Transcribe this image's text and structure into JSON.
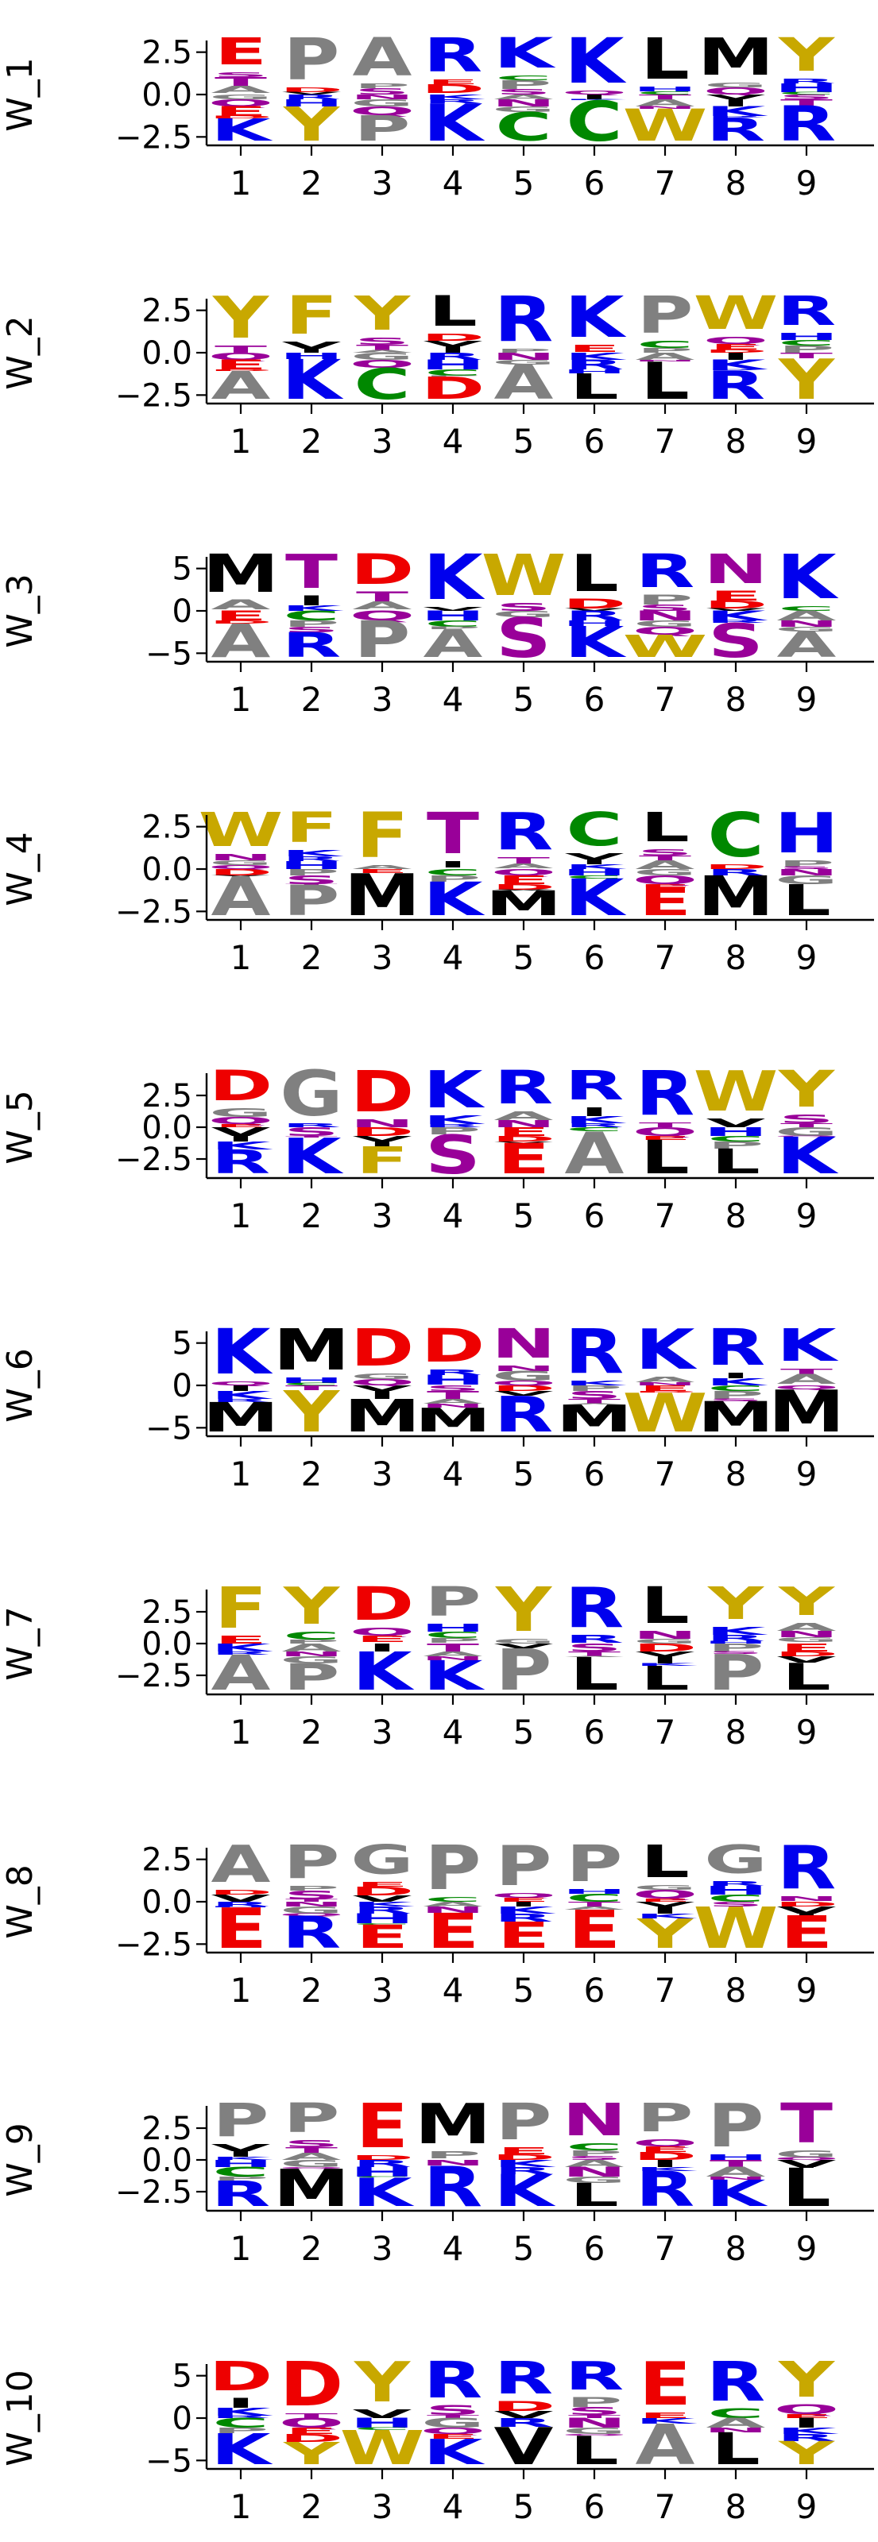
{
  "chart_data": [
    {
      "type": "logo",
      "ylabel": "W_1",
      "yticks": [
        "2.5",
        "0.0",
        "−2.5"
      ],
      "ylim": [
        -3,
        3
      ],
      "x": [
        1,
        2,
        3,
        4,
        5,
        6,
        7,
        8,
        9
      ],
      "top_letters": [
        "E",
        "P",
        "A",
        "R",
        "K",
        "K",
        "L",
        "M",
        "Y"
      ],
      "bottom_letters": [
        "K",
        "Y",
        "P",
        "K",
        "C",
        "C",
        "W",
        "R",
        "R"
      ]
    },
    {
      "type": "logo",
      "ylabel": "W_2",
      "yticks": [
        "2.5",
        "0.0",
        "−2.5"
      ],
      "ylim": [
        -3,
        3
      ],
      "x": [
        1,
        2,
        3,
        4,
        5,
        6,
        7,
        8,
        9
      ],
      "top_letters": [
        "Y",
        "F",
        "Y",
        "L",
        "R",
        "K",
        "P",
        "W",
        "R"
      ],
      "bottom_letters": [
        "A",
        "K",
        "C",
        "D",
        "A",
        "L",
        "L",
        "R",
        "Y"
      ]
    },
    {
      "type": "logo",
      "ylabel": "W_3",
      "yticks": [
        "5",
        "0",
        "−5"
      ],
      "ylim": [
        -6,
        6
      ],
      "x": [
        1,
        2,
        3,
        4,
        5,
        6,
        7,
        8,
        9
      ],
      "top_letters": [
        "M",
        "T",
        "D",
        "K",
        "W",
        "L",
        "R",
        "N",
        "K"
      ],
      "bottom_letters": [
        "A",
        "R",
        "P",
        "A",
        "S",
        "K",
        "W",
        "S",
        "A"
      ]
    },
    {
      "type": "logo",
      "ylabel": "W_4",
      "yticks": [
        "2.5",
        "0.0",
        "−2.5"
      ],
      "ylim": [
        -3,
        3
      ],
      "x": [
        1,
        2,
        3,
        4,
        5,
        6,
        7,
        8,
        9
      ],
      "top_letters": [
        "W",
        "F",
        "F",
        "T",
        "R",
        "C",
        "L",
        "C",
        "H"
      ],
      "bottom_letters": [
        "A",
        "P",
        "M",
        "K",
        "M",
        "K",
        "E",
        "M",
        "L"
      ]
    },
    {
      "type": "logo",
      "ylabel": "W_5",
      "yticks": [
        "2.5",
        "0.0",
        "−2.5"
      ],
      "ylim": [
        -4,
        4
      ],
      "x": [
        1,
        2,
        3,
        4,
        5,
        6,
        7,
        8,
        9
      ],
      "top_letters": [
        "D",
        "G",
        "D",
        "K",
        "R",
        "R",
        "R",
        "W",
        "Y"
      ],
      "bottom_letters": [
        "R",
        "K",
        "F",
        "S",
        "E",
        "A",
        "L",
        "L",
        "K"
      ]
    },
    {
      "type": "logo",
      "ylabel": "W_6",
      "yticks": [
        "5",
        "0",
        "−5"
      ],
      "ylim": [
        -6,
        6
      ],
      "x": [
        1,
        2,
        3,
        4,
        5,
        6,
        7,
        8,
        9
      ],
      "top_letters": [
        "K",
        "M",
        "D",
        "D",
        "N",
        "R",
        "K",
        "R",
        "K"
      ],
      "bottom_letters": [
        "M",
        "Y",
        "M",
        "M",
        "R",
        "M",
        "W",
        "M",
        "M"
      ]
    },
    {
      "type": "logo",
      "ylabel": "W_7",
      "yticks": [
        "2.5",
        "0.0",
        "−2.5"
      ],
      "ylim": [
        -4,
        4
      ],
      "x": [
        1,
        2,
        3,
        4,
        5,
        6,
        7,
        8,
        9
      ],
      "top_letters": [
        "F",
        "Y",
        "D",
        "P",
        "Y",
        "R",
        "L",
        "Y",
        "Y"
      ],
      "bottom_letters": [
        "A",
        "P",
        "K",
        "K",
        "P",
        "L",
        "L",
        "P",
        "L"
      ]
    },
    {
      "type": "logo",
      "ylabel": "W_8",
      "yticks": [
        "2.5",
        "0.0",
        "−2.5"
      ],
      "ylim": [
        -3,
        3
      ],
      "x": [
        1,
        2,
        3,
        4,
        5,
        6,
        7,
        8,
        9
      ],
      "top_letters": [
        "A",
        "P",
        "G",
        "P",
        "P",
        "P",
        "L",
        "G",
        "R"
      ],
      "bottom_letters": [
        "E",
        "R",
        "E",
        "E",
        "E",
        "E",
        "Y",
        "W",
        "E"
      ]
    },
    {
      "type": "logo",
      "ylabel": "W_9",
      "yticks": [
        "2.5",
        "0.0",
        "−2.5"
      ],
      "ylim": [
        -4,
        4
      ],
      "x": [
        1,
        2,
        3,
        4,
        5,
        6,
        7,
        8,
        9
      ],
      "top_letters": [
        "P",
        "P",
        "E",
        "M",
        "P",
        "N",
        "P",
        "P",
        "T"
      ],
      "bottom_letters": [
        "R",
        "M",
        "K",
        "R",
        "K",
        "L",
        "R",
        "K",
        "L"
      ]
    },
    {
      "type": "logo",
      "ylabel": "W_10",
      "yticks": [
        "5",
        "0",
        "−5"
      ],
      "ylim": [
        -6,
        6
      ],
      "x": [
        1,
        2,
        3,
        4,
        5,
        6,
        7,
        8,
        9
      ],
      "top_letters": [
        "D",
        "D",
        "Y",
        "R",
        "R",
        "R",
        "E",
        "R",
        "Y"
      ],
      "bottom_letters": [
        "K",
        "Y",
        "W",
        "K",
        "V",
        "L",
        "A",
        "L",
        "Y"
      ]
    }
  ]
}
